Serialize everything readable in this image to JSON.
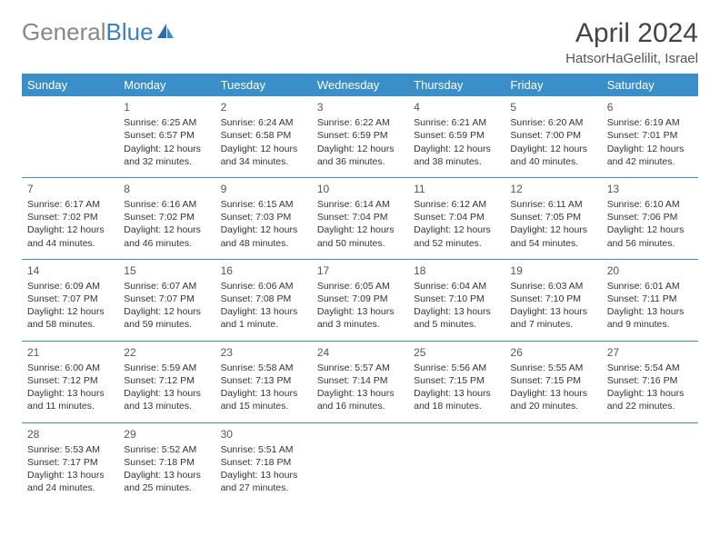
{
  "logo": {
    "part1": "General",
    "part2": "Blue"
  },
  "title": "April 2024",
  "location": "HatsorHaGelilit, Israel",
  "colors": {
    "header_bg": "#3a8fc9",
    "header_text": "#ffffff",
    "divider": "#3a8fc9",
    "logo_gray": "#888888",
    "logo_blue": "#3a7fbf"
  },
  "weekdays": [
    "Sunday",
    "Monday",
    "Tuesday",
    "Wednesday",
    "Thursday",
    "Friday",
    "Saturday"
  ],
  "weeks": [
    [
      null,
      {
        "d": "1",
        "sr": "Sunrise: 6:25 AM",
        "ss": "Sunset: 6:57 PM",
        "dl1": "Daylight: 12 hours",
        "dl2": "and 32 minutes."
      },
      {
        "d": "2",
        "sr": "Sunrise: 6:24 AM",
        "ss": "Sunset: 6:58 PM",
        "dl1": "Daylight: 12 hours",
        "dl2": "and 34 minutes."
      },
      {
        "d": "3",
        "sr": "Sunrise: 6:22 AM",
        "ss": "Sunset: 6:59 PM",
        "dl1": "Daylight: 12 hours",
        "dl2": "and 36 minutes."
      },
      {
        "d": "4",
        "sr": "Sunrise: 6:21 AM",
        "ss": "Sunset: 6:59 PM",
        "dl1": "Daylight: 12 hours",
        "dl2": "and 38 minutes."
      },
      {
        "d": "5",
        "sr": "Sunrise: 6:20 AM",
        "ss": "Sunset: 7:00 PM",
        "dl1": "Daylight: 12 hours",
        "dl2": "and 40 minutes."
      },
      {
        "d": "6",
        "sr": "Sunrise: 6:19 AM",
        "ss": "Sunset: 7:01 PM",
        "dl1": "Daylight: 12 hours",
        "dl2": "and 42 minutes."
      }
    ],
    [
      {
        "d": "7",
        "sr": "Sunrise: 6:17 AM",
        "ss": "Sunset: 7:02 PM",
        "dl1": "Daylight: 12 hours",
        "dl2": "and 44 minutes."
      },
      {
        "d": "8",
        "sr": "Sunrise: 6:16 AM",
        "ss": "Sunset: 7:02 PM",
        "dl1": "Daylight: 12 hours",
        "dl2": "and 46 minutes."
      },
      {
        "d": "9",
        "sr": "Sunrise: 6:15 AM",
        "ss": "Sunset: 7:03 PM",
        "dl1": "Daylight: 12 hours",
        "dl2": "and 48 minutes."
      },
      {
        "d": "10",
        "sr": "Sunrise: 6:14 AM",
        "ss": "Sunset: 7:04 PM",
        "dl1": "Daylight: 12 hours",
        "dl2": "and 50 minutes."
      },
      {
        "d": "11",
        "sr": "Sunrise: 6:12 AM",
        "ss": "Sunset: 7:04 PM",
        "dl1": "Daylight: 12 hours",
        "dl2": "and 52 minutes."
      },
      {
        "d": "12",
        "sr": "Sunrise: 6:11 AM",
        "ss": "Sunset: 7:05 PM",
        "dl1": "Daylight: 12 hours",
        "dl2": "and 54 minutes."
      },
      {
        "d": "13",
        "sr": "Sunrise: 6:10 AM",
        "ss": "Sunset: 7:06 PM",
        "dl1": "Daylight: 12 hours",
        "dl2": "and 56 minutes."
      }
    ],
    [
      {
        "d": "14",
        "sr": "Sunrise: 6:09 AM",
        "ss": "Sunset: 7:07 PM",
        "dl1": "Daylight: 12 hours",
        "dl2": "and 58 minutes."
      },
      {
        "d": "15",
        "sr": "Sunrise: 6:07 AM",
        "ss": "Sunset: 7:07 PM",
        "dl1": "Daylight: 12 hours",
        "dl2": "and 59 minutes."
      },
      {
        "d": "16",
        "sr": "Sunrise: 6:06 AM",
        "ss": "Sunset: 7:08 PM",
        "dl1": "Daylight: 13 hours",
        "dl2": "and 1 minute."
      },
      {
        "d": "17",
        "sr": "Sunrise: 6:05 AM",
        "ss": "Sunset: 7:09 PM",
        "dl1": "Daylight: 13 hours",
        "dl2": "and 3 minutes."
      },
      {
        "d": "18",
        "sr": "Sunrise: 6:04 AM",
        "ss": "Sunset: 7:10 PM",
        "dl1": "Daylight: 13 hours",
        "dl2": "and 5 minutes."
      },
      {
        "d": "19",
        "sr": "Sunrise: 6:03 AM",
        "ss": "Sunset: 7:10 PM",
        "dl1": "Daylight: 13 hours",
        "dl2": "and 7 minutes."
      },
      {
        "d": "20",
        "sr": "Sunrise: 6:01 AM",
        "ss": "Sunset: 7:11 PM",
        "dl1": "Daylight: 13 hours",
        "dl2": "and 9 minutes."
      }
    ],
    [
      {
        "d": "21",
        "sr": "Sunrise: 6:00 AM",
        "ss": "Sunset: 7:12 PM",
        "dl1": "Daylight: 13 hours",
        "dl2": "and 11 minutes."
      },
      {
        "d": "22",
        "sr": "Sunrise: 5:59 AM",
        "ss": "Sunset: 7:12 PM",
        "dl1": "Daylight: 13 hours",
        "dl2": "and 13 minutes."
      },
      {
        "d": "23",
        "sr": "Sunrise: 5:58 AM",
        "ss": "Sunset: 7:13 PM",
        "dl1": "Daylight: 13 hours",
        "dl2": "and 15 minutes."
      },
      {
        "d": "24",
        "sr": "Sunrise: 5:57 AM",
        "ss": "Sunset: 7:14 PM",
        "dl1": "Daylight: 13 hours",
        "dl2": "and 16 minutes."
      },
      {
        "d": "25",
        "sr": "Sunrise: 5:56 AM",
        "ss": "Sunset: 7:15 PM",
        "dl1": "Daylight: 13 hours",
        "dl2": "and 18 minutes."
      },
      {
        "d": "26",
        "sr": "Sunrise: 5:55 AM",
        "ss": "Sunset: 7:15 PM",
        "dl1": "Daylight: 13 hours",
        "dl2": "and 20 minutes."
      },
      {
        "d": "27",
        "sr": "Sunrise: 5:54 AM",
        "ss": "Sunset: 7:16 PM",
        "dl1": "Daylight: 13 hours",
        "dl2": "and 22 minutes."
      }
    ],
    [
      {
        "d": "28",
        "sr": "Sunrise: 5:53 AM",
        "ss": "Sunset: 7:17 PM",
        "dl1": "Daylight: 13 hours",
        "dl2": "and 24 minutes."
      },
      {
        "d": "29",
        "sr": "Sunrise: 5:52 AM",
        "ss": "Sunset: 7:18 PM",
        "dl1": "Daylight: 13 hours",
        "dl2": "and 25 minutes."
      },
      {
        "d": "30",
        "sr": "Sunrise: 5:51 AM",
        "ss": "Sunset: 7:18 PM",
        "dl1": "Daylight: 13 hours",
        "dl2": "and 27 minutes."
      },
      null,
      null,
      null,
      null
    ]
  ]
}
